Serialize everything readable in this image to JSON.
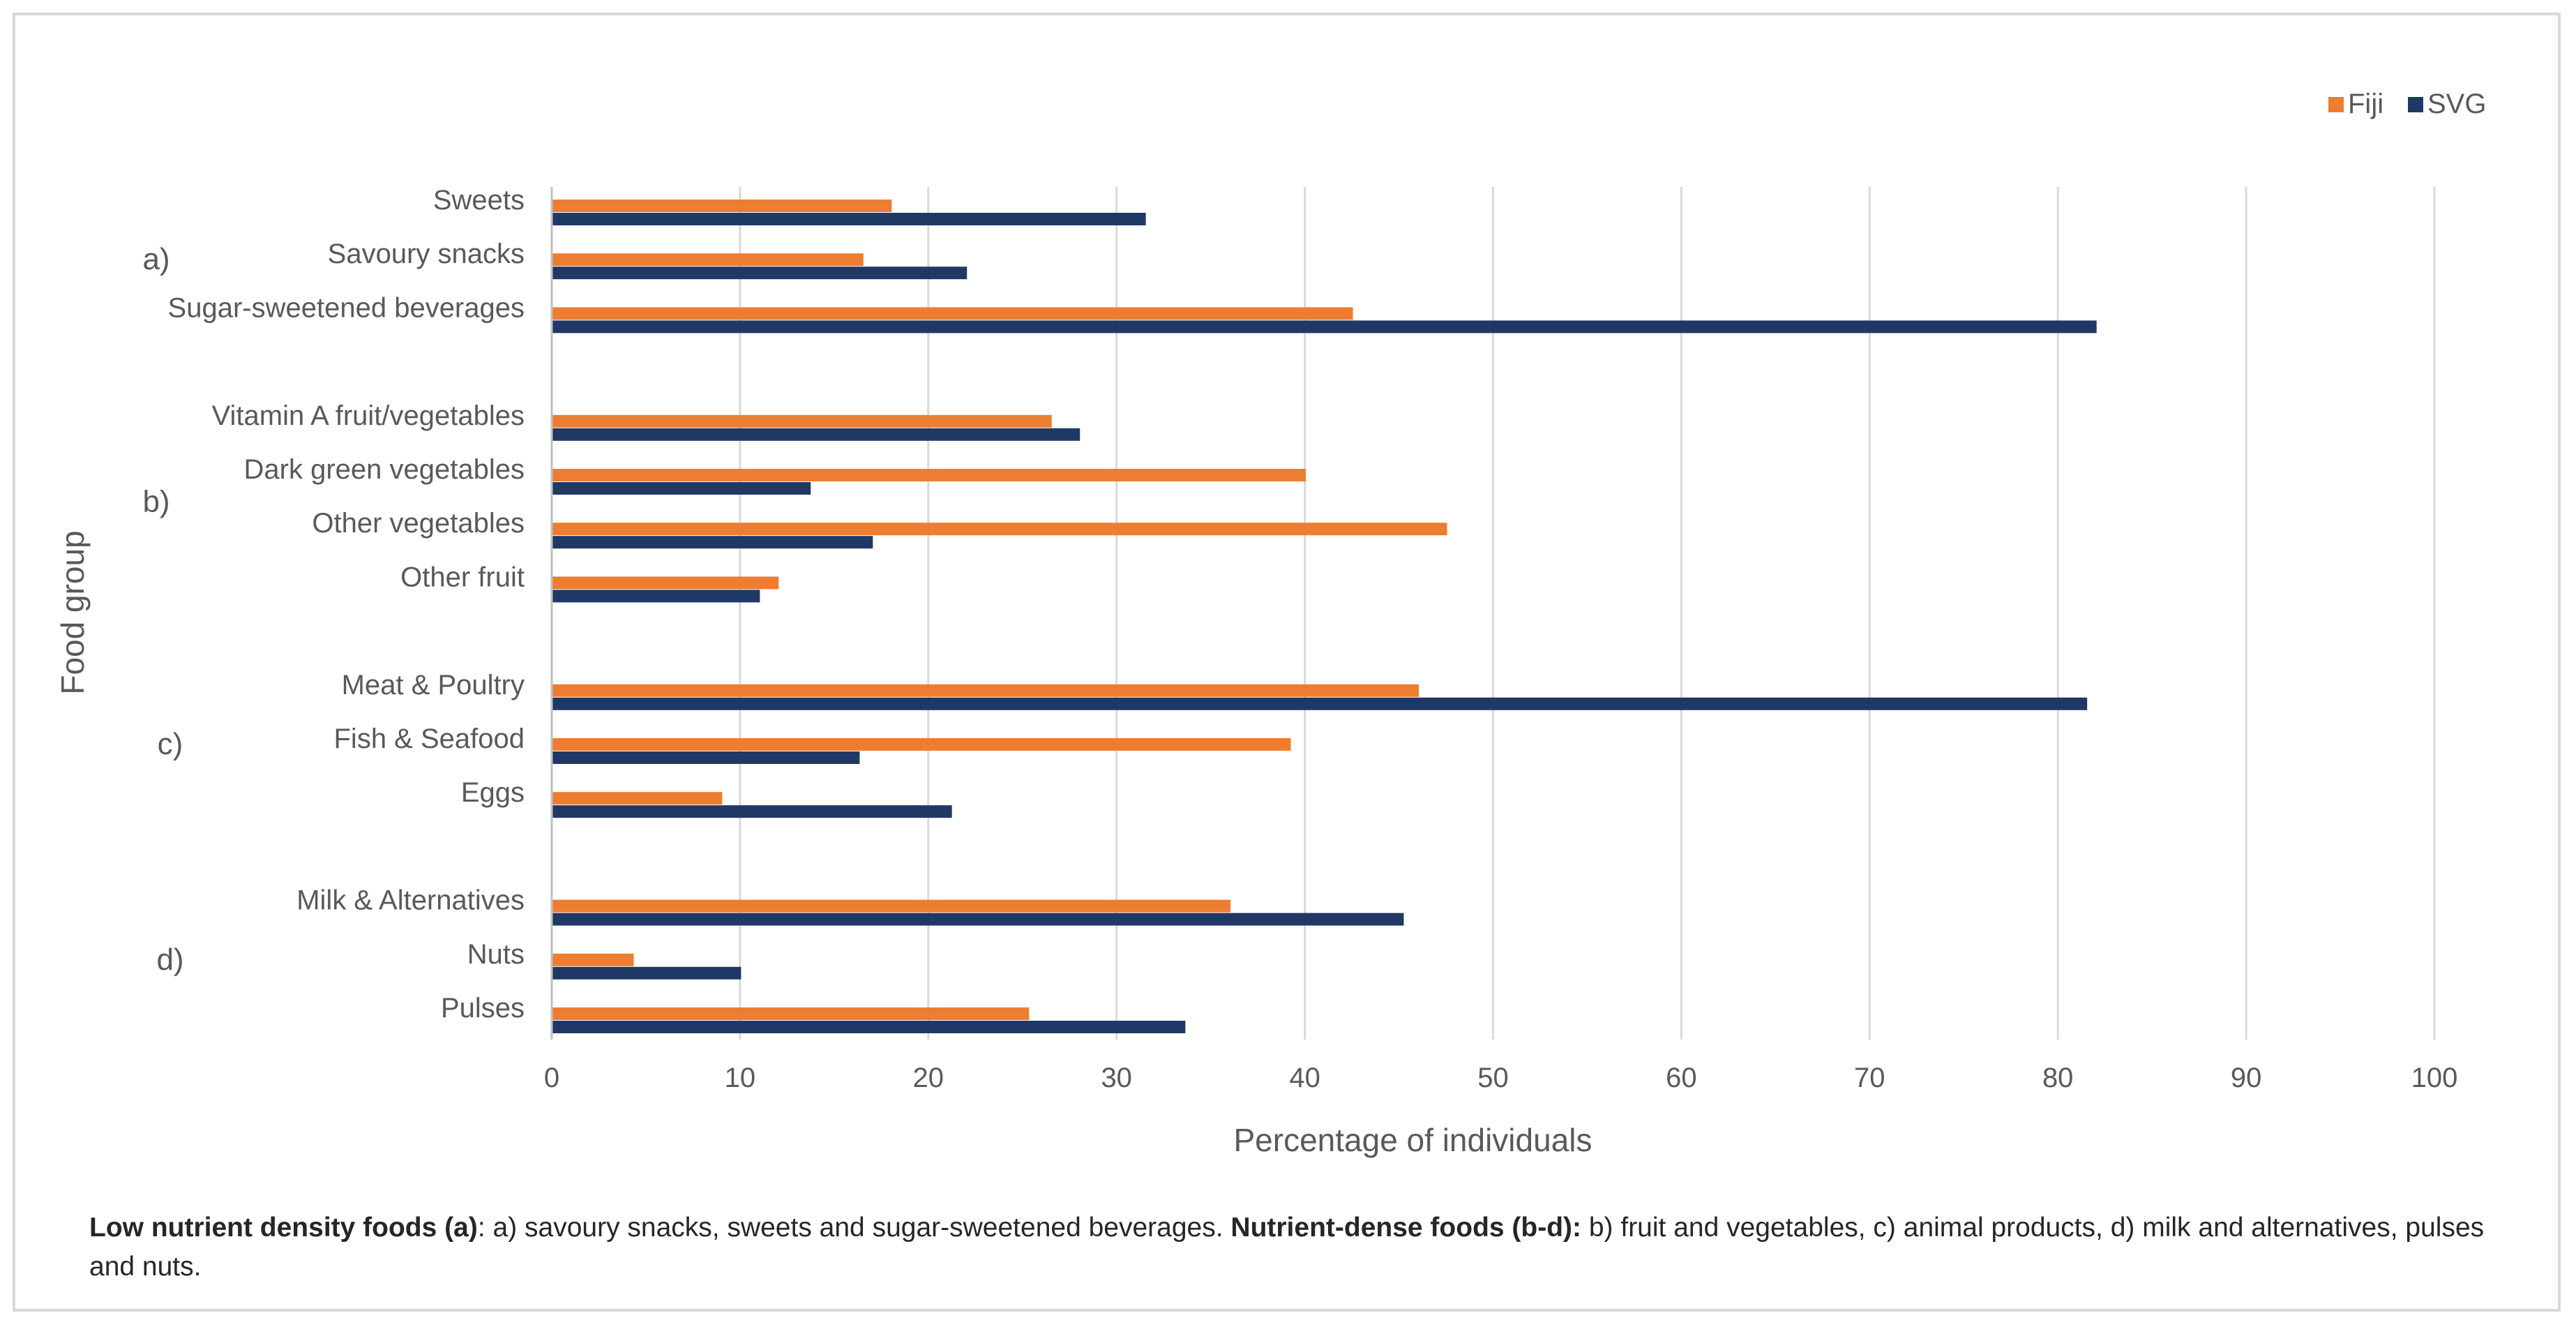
{
  "chart_data": {
    "type": "bar",
    "orientation": "horizontal",
    "title": "",
    "xlabel": "Percentage  of individuals",
    "ylabel": "Food group",
    "xlim": [
      0,
      100
    ],
    "xticks": [
      0,
      10,
      20,
      30,
      40,
      50,
      60,
      70,
      80,
      90,
      100
    ],
    "grid": "vertical",
    "legend_position": "top-right",
    "series": [
      {
        "name": "Fiji",
        "color": "#ED7D31"
      },
      {
        "name": "SVG",
        "color": "#203864"
      }
    ],
    "groups": [
      {
        "label": "a)",
        "categories": [
          {
            "name": "Sweets",
            "Fiji": 18,
            "SVG": 31.5
          },
          {
            "name": "Savoury snacks",
            "Fiji": 16.5,
            "SVG": 22
          },
          {
            "name": "Sugar-sweetened beverages",
            "Fiji": 42.5,
            "SVG": 82
          }
        ]
      },
      {
        "label": "b)",
        "categories": [
          {
            "name": "Vitamin A fruit/vegetables",
            "Fiji": 26.5,
            "SVG": 28
          },
          {
            "name": "Dark green vegetables",
            "Fiji": 40,
            "SVG": 13.7
          },
          {
            "name": "Other vegetables",
            "Fiji": 47.5,
            "SVG": 17
          },
          {
            "name": "Other fruit",
            "Fiji": 12,
            "SVG": 11
          }
        ]
      },
      {
        "label": "c)",
        "categories": [
          {
            "name": "Meat & Poultry",
            "Fiji": 46,
            "SVG": 81.5
          },
          {
            "name": "Fish & Seafood",
            "Fiji": 39.2,
            "SVG": 16.3
          },
          {
            "name": "Eggs",
            "Fiji": 9,
            "SVG": 21.2
          }
        ]
      },
      {
        "label": "d)",
        "categories": [
          {
            "name": "Milk & Alternatives",
            "Fiji": 36,
            "SVG": 45.2
          },
          {
            "name": "Nuts",
            "Fiji": 4.3,
            "SVG": 10
          },
          {
            "name": "Pulses",
            "Fiji": 25.3,
            "SVG": 33.6
          }
        ]
      }
    ]
  },
  "caption": {
    "bold1": "Low nutrient density foods (a)",
    "text1": ": a) savoury snacks, sweets and sugar-sweetened beverages. ",
    "bold2": "Nutrient-dense foods (b-d):",
    "text2": " b) fruit and vegetables, c) animal products, d) milk and alternatives, pulses and nuts."
  }
}
